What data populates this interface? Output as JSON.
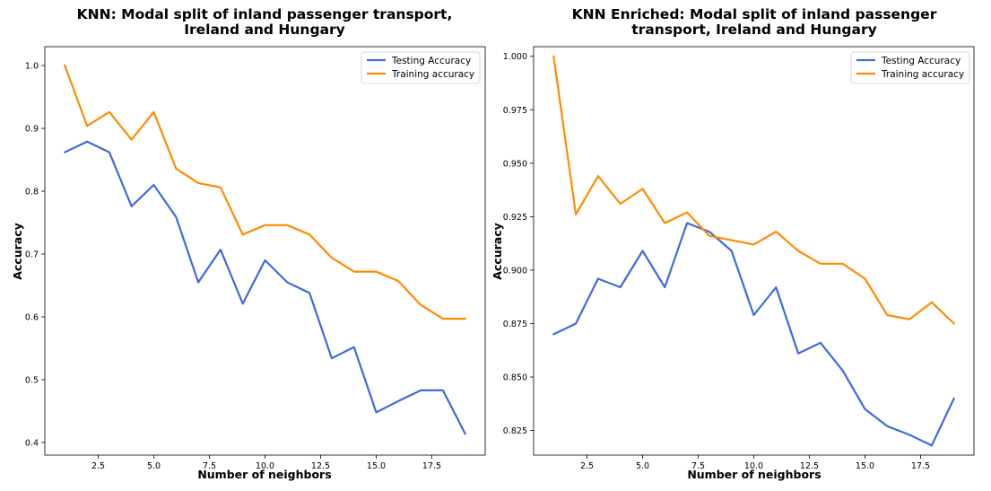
{
  "colors": {
    "testing": "#4169e1",
    "training": "#ff8c00"
  },
  "chart_data": [
    {
      "type": "line",
      "title_lines": [
        "KNN: Modal split of inland passenger transport,",
        "Ireland and Hungary"
      ],
      "xlabel": "Number of neighbors",
      "ylabel": "Accuracy",
      "xlim": [
        0.1,
        19.9
      ],
      "ylim": [
        0.38,
        1.03
      ],
      "xticks": [
        2.5,
        5.0,
        7.5,
        10.0,
        12.5,
        15.0,
        17.5
      ],
      "xtick_labels": [
        "2.5",
        "5.0",
        "7.5",
        "10.0",
        "12.5",
        "15.0",
        "17.5"
      ],
      "yticks": [
        0.4,
        0.5,
        0.6,
        0.7,
        0.8,
        0.9,
        1.0
      ],
      "ytick_labels": [
        "0.4",
        "0.5",
        "0.6",
        "0.7",
        "0.8",
        "0.9",
        "1.0"
      ],
      "legend_position": "top-right",
      "x": [
        1,
        2,
        3,
        4,
        5,
        6,
        7,
        8,
        9,
        10,
        11,
        12,
        13,
        14,
        15,
        16,
        17,
        18,
        19
      ],
      "series": [
        {
          "name": "Testing Accuracy",
          "color_key": "testing",
          "values": [
            0.862,
            0.879,
            0.862,
            0.776,
            0.81,
            0.759,
            0.655,
            0.707,
            0.621,
            0.69,
            0.655,
            0.638,
            0.534,
            0.552,
            0.448,
            0.466,
            0.483,
            0.483,
            0.414
          ]
        },
        {
          "name": "Training accuracy",
          "color_key": "training",
          "values": [
            1.0,
            0.904,
            0.926,
            0.882,
            0.926,
            0.836,
            0.813,
            0.806,
            0.731,
            0.746,
            0.746,
            0.731,
            0.694,
            0.672,
            0.672,
            0.657,
            0.619,
            0.597,
            0.597
          ]
        }
      ]
    },
    {
      "type": "line",
      "title_lines": [
        "KNN Enriched: Modal split of inland passenger",
        "transport, Ireland and Hungary"
      ],
      "xlabel": "Number of neighbors",
      "ylabel": "Accuracy",
      "xlim": [
        0.1,
        19.9
      ],
      "ylim": [
        0.8135,
        1.0045
      ],
      "xticks": [
        2.5,
        5.0,
        7.5,
        10.0,
        12.5,
        15.0,
        17.5
      ],
      "xtick_labels": [
        "2.5",
        "5.0",
        "7.5",
        "10.0",
        "12.5",
        "15.0",
        "17.5"
      ],
      "yticks": [
        0.825,
        0.85,
        0.875,
        0.9,
        0.925,
        0.95,
        0.975,
        1.0
      ],
      "ytick_labels": [
        "0.825",
        "0.850",
        "0.875",
        "0.900",
        "0.925",
        "0.950",
        "0.975",
        "1.000"
      ],
      "legend_position": "top-right",
      "x": [
        1,
        2,
        3,
        4,
        5,
        6,
        7,
        8,
        9,
        10,
        11,
        12,
        13,
        14,
        15,
        16,
        17,
        18,
        19
      ],
      "series": [
        {
          "name": "Testing Accuracy",
          "color_key": "testing",
          "values": [
            0.87,
            0.875,
            0.896,
            0.892,
            0.909,
            0.892,
            0.922,
            0.918,
            0.909,
            0.879,
            0.892,
            0.861,
            0.866,
            0.853,
            0.835,
            0.827,
            0.823,
            0.818,
            0.84
          ]
        },
        {
          "name": "Training accuracy",
          "color_key": "training",
          "values": [
            1.0,
            0.926,
            0.944,
            0.931,
            0.938,
            0.922,
            0.927,
            0.916,
            0.914,
            0.912,
            0.918,
            0.909,
            0.903,
            0.903,
            0.896,
            0.879,
            0.877,
            0.885,
            0.875
          ]
        }
      ]
    }
  ]
}
